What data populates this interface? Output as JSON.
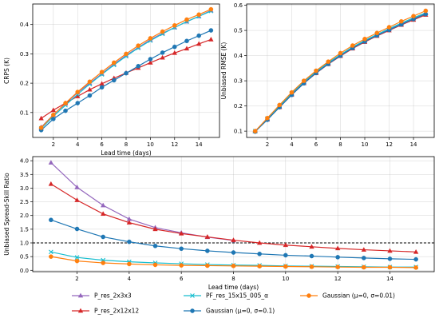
{
  "chart_data": [
    {
      "type": "line",
      "title": "",
      "xlabel": "Lead time (days)",
      "ylabel": "CRPS (K)",
      "xlim": [
        0.3,
        15.7
      ],
      "ylim": [
        0.015,
        0.47
      ],
      "xticks": [
        2,
        4,
        6,
        8,
        10,
        12,
        14
      ],
      "yticks": [
        0.1,
        0.2,
        0.3,
        0.4
      ],
      "ytick_labels": [
        "0.1",
        "0.2",
        "0.3",
        "0.4"
      ],
      "grid": true,
      "x": [
        1,
        2,
        3,
        4,
        5,
        6,
        7,
        8,
        9,
        10,
        11,
        12,
        13,
        14,
        15
      ],
      "series": [
        {
          "name": "P_res_2x3x3",
          "color": "#9467bd",
          "marker": "triangle",
          "values": [
            0.05,
            0.092,
            0.13,
            0.168,
            0.2,
            0.232,
            0.265,
            0.295,
            0.322,
            0.348,
            0.37,
            0.39,
            0.41,
            0.428,
            0.448
          ]
        },
        {
          "name": "P_res_2x12x12",
          "color": "#d62728",
          "marker": "triangle",
          "values": [
            0.08,
            0.108,
            0.132,
            0.155,
            0.178,
            0.198,
            0.217,
            0.235,
            0.252,
            0.27,
            0.287,
            0.303,
            0.318,
            0.334,
            0.349
          ]
        },
        {
          "name": "PF_res_15x15_005_α",
          "color": "#17becf",
          "marker": "x",
          "values": [
            0.046,
            0.087,
            0.125,
            0.162,
            0.197,
            0.23,
            0.262,
            0.292,
            0.32,
            0.345,
            0.368,
            0.39,
            0.41,
            0.428,
            0.446
          ]
        },
        {
          "name": "Gaussian (μ=0, σ=0.1)",
          "color": "#1f77b4",
          "marker": "circle",
          "values": [
            0.04,
            0.078,
            0.106,
            0.132,
            0.158,
            0.186,
            0.21,
            0.234,
            0.258,
            0.282,
            0.304,
            0.324,
            0.344,
            0.362,
            0.38
          ]
        },
        {
          "name": "Gaussian (μ=0, σ=0.01)",
          "color": "#ff7f0e",
          "marker": "circle",
          "values": [
            0.048,
            0.092,
            0.132,
            0.17,
            0.205,
            0.238,
            0.27,
            0.3,
            0.328,
            0.353,
            0.376,
            0.397,
            0.417,
            0.434,
            0.452
          ]
        }
      ]
    },
    {
      "type": "line",
      "title": "",
      "xlabel": "",
      "ylabel": "Unbiased RMSE (K)",
      "xlim": [
        0.3,
        15.7
      ],
      "ylim": [
        0.075,
        0.605
      ],
      "xticks": [
        2,
        4,
        6,
        8,
        10,
        12,
        14
      ],
      "yticks": [
        0.1,
        0.2,
        0.3,
        0.4,
        0.5,
        0.6
      ],
      "ytick_labels": [
        "0.1",
        "0.2",
        "0.3",
        "0.4",
        "0.5",
        "0.6"
      ],
      "grid": true,
      "x": [
        1,
        2,
        3,
        4,
        5,
        6,
        7,
        8,
        9,
        10,
        11,
        12,
        13,
        14,
        15
      ],
      "series": [
        {
          "name": "P_res_2x3x3",
          "color": "#9467bd",
          "marker": "triangle",
          "values": [
            0.1,
            0.148,
            0.198,
            0.248,
            0.294,
            0.334,
            0.37,
            0.402,
            0.432,
            0.458,
            0.482,
            0.505,
            0.527,
            0.548,
            0.568
          ]
        },
        {
          "name": "P_res_2x12x12",
          "color": "#d62728",
          "marker": "triangle",
          "values": [
            0.1,
            0.146,
            0.195,
            0.244,
            0.29,
            0.33,
            0.366,
            0.398,
            0.428,
            0.454,
            0.478,
            0.5,
            0.522,
            0.542,
            0.562
          ]
        },
        {
          "name": "PF_res_15x15_005_α",
          "color": "#17becf",
          "marker": "x",
          "values": [
            0.1,
            0.15,
            0.2,
            0.25,
            0.296,
            0.336,
            0.372,
            0.404,
            0.434,
            0.46,
            0.484,
            0.507,
            0.529,
            0.55,
            0.57
          ]
        },
        {
          "name": "Gaussian (μ=0, σ=0.1)",
          "color": "#1f77b4",
          "marker": "circle",
          "values": [
            0.098,
            0.145,
            0.195,
            0.244,
            0.29,
            0.331,
            0.367,
            0.4,
            0.43,
            0.456,
            0.48,
            0.502,
            0.524,
            0.545,
            0.565
          ]
        },
        {
          "name": "Gaussian (μ=0, σ=0.01)",
          "color": "#ff7f0e",
          "marker": "circle",
          "values": [
            0.1,
            0.152,
            0.204,
            0.254,
            0.3,
            0.34,
            0.376,
            0.41,
            0.44,
            0.466,
            0.49,
            0.513,
            0.536,
            0.557,
            0.578
          ]
        }
      ]
    },
    {
      "type": "line",
      "title": "",
      "xlabel": "Lead time (days)",
      "ylabel": "Unbiased Spread-Skill Ratio",
      "xlim": [
        0.3,
        15.7
      ],
      "ylim": [
        -0.05,
        4.15
      ],
      "xticks": [
        2,
        4,
        6,
        8,
        10,
        12,
        14
      ],
      "yticks": [
        0,
        0.5,
        1,
        1.5,
        2,
        2.5,
        3,
        3.5,
        4
      ],
      "ytick_labels": [
        "0.0",
        "0.5",
        "1.0",
        "1.5",
        "2.0",
        "2.5",
        "3.0",
        "3.5",
        "4.0"
      ],
      "grid": true,
      "reference_line": {
        "y": 1.0,
        "style": "dashed",
        "color": "#000000"
      },
      "x": [
        1,
        2,
        3,
        4,
        5,
        6,
        7,
        8,
        9,
        10,
        11,
        12,
        13,
        14,
        15
      ],
      "series": [
        {
          "name": "P_res_2x3x3",
          "color": "#9467bd",
          "marker": "triangle",
          "values": [
            3.93,
            3.03,
            2.37,
            1.87,
            1.56,
            1.37,
            1.21,
            1.09,
            null,
            null,
            null,
            null,
            null,
            null,
            null
          ]
        },
        {
          "name": "P_res_2x12x12",
          "color": "#d62728",
          "marker": "triangle",
          "values": [
            3.15,
            2.56,
            2.06,
            1.74,
            1.5,
            1.34,
            1.22,
            1.1,
            1.0,
            0.92,
            0.86,
            0.8,
            0.75,
            0.71,
            0.67
          ]
        },
        {
          "name": "PF_res_15x15_005_α",
          "color": "#17becf",
          "marker": "x",
          "values": [
            0.67,
            0.47,
            0.37,
            0.31,
            0.27,
            0.24,
            0.21,
            0.19,
            0.18,
            0.16,
            0.15,
            0.14,
            0.13,
            0.12,
            0.12
          ]
        },
        {
          "name": "Gaussian (μ=0, σ=0.1)",
          "color": "#1f77b4",
          "marker": "circle",
          "values": [
            1.84,
            1.51,
            1.22,
            1.04,
            0.89,
            0.79,
            0.71,
            0.65,
            0.6,
            0.55,
            0.52,
            0.48,
            0.45,
            0.42,
            0.4
          ]
        },
        {
          "name": "Gaussian (μ=0, σ=0.01)",
          "color": "#ff7f0e",
          "marker": "circle",
          "values": [
            0.5,
            0.34,
            0.27,
            0.23,
            0.2,
            0.18,
            0.17,
            0.16,
            0.15,
            0.14,
            0.13,
            0.12,
            0.11,
            0.11,
            0.1
          ]
        }
      ]
    }
  ],
  "legend": {
    "placement": "bottom-center",
    "ncol": 3,
    "entries": [
      {
        "label": "P_res_2x3x3",
        "color": "#9467bd",
        "marker": "triangle"
      },
      {
        "label": "PF_res_15x15_005_α",
        "color": "#17becf",
        "marker": "x"
      },
      {
        "label": "Gaussian  (μ=0, σ=0.01)",
        "color": "#ff7f0e",
        "marker": "circle"
      },
      {
        "label": "P_res_2x12x12",
        "color": "#d62728",
        "marker": "triangle"
      },
      {
        "label": "Gaussian  (μ=0, σ=0.1)",
        "color": "#1f77b4",
        "marker": "circle"
      }
    ]
  }
}
